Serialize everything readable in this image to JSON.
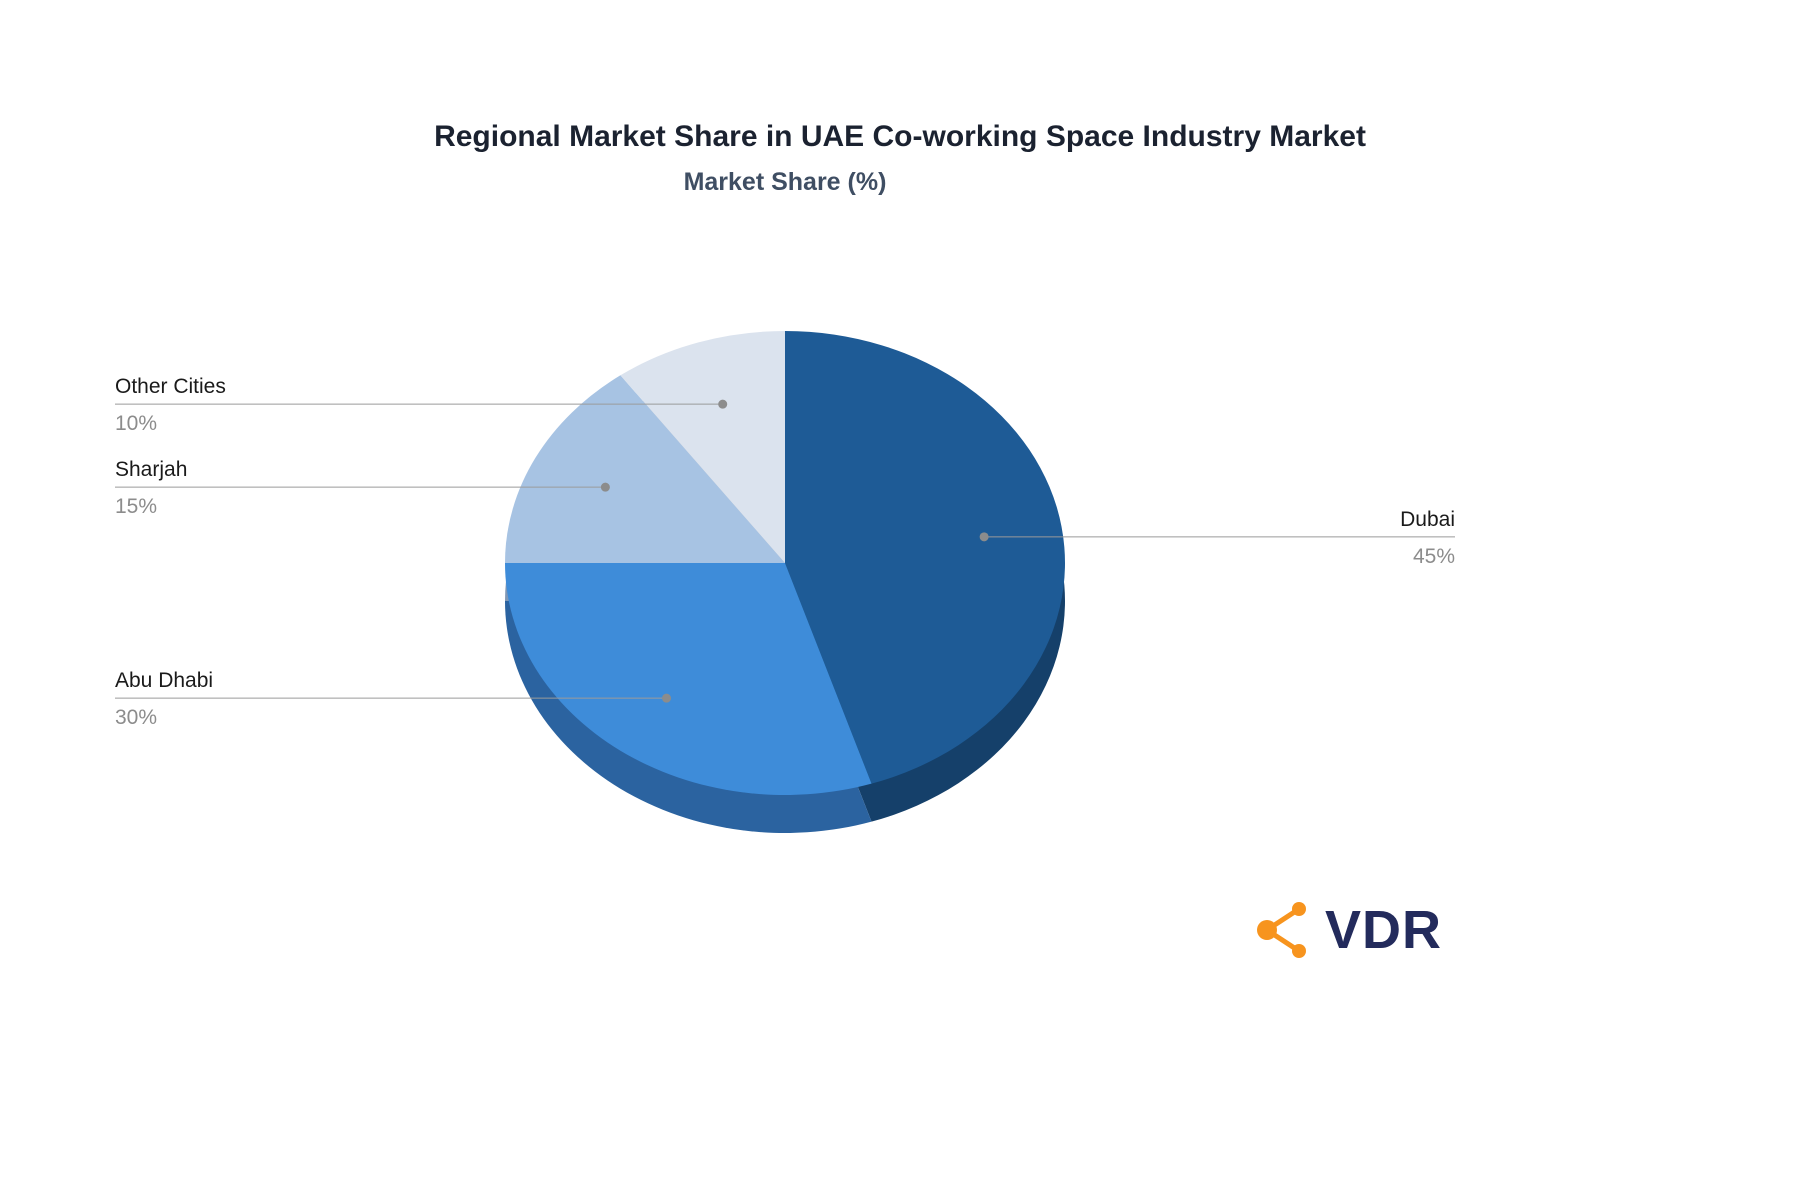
{
  "chart_data": {
    "type": "pie",
    "title": "Regional Market Share in UAE Co-working Space Industry Market",
    "subtitle": "Market Share (%)",
    "unit": "%",
    "labels": [
      "Dubai",
      "Abu Dhabi",
      "Sharjah",
      "Other Cities"
    ],
    "values": [
      45,
      30,
      15,
      10
    ],
    "value_labels": [
      "45%",
      "30%",
      "15%",
      "10%"
    ],
    "colors": [
      "#1e5b96",
      "#3e8cd9",
      "#a7c3e3",
      "#dbe3ee"
    ],
    "depth_colors": [
      "#15406a",
      "#2b63a0",
      "#7f97b5",
      "#a9b5c6"
    ],
    "start_angle_deg": 0,
    "direction": "clockwise",
    "effect": "3d-depth",
    "leader_line_color": "#9a9a9a",
    "label_name_color": "#1a1a1a",
    "label_value_color": "#8c8c8c",
    "legend_position": "none"
  },
  "logo": {
    "text": "VDR",
    "accent_color": "#f7941e",
    "text_color": "#232b5c"
  }
}
